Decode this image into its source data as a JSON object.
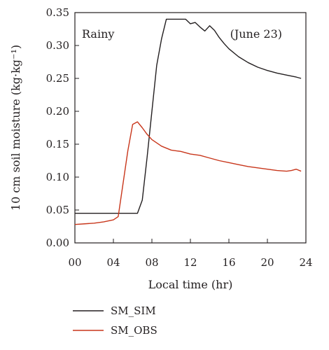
{
  "chart_data": {
    "type": "line",
    "xlabel": "Local time (hr)",
    "ylabel": "10 cm soil moisture (kg·kg⁻¹)",
    "xlim": [
      0,
      24
    ],
    "ylim": [
      0,
      0.35
    ],
    "x_ticks": [
      0,
      4,
      8,
      12,
      16,
      20,
      24
    ],
    "x_tick_labels": [
      "00",
      "04",
      "08",
      "12",
      "16",
      "20",
      "24"
    ],
    "y_ticks": [
      0,
      0.05,
      0.1,
      0.15,
      0.2,
      0.25,
      0.3,
      0.35
    ],
    "y_tick_labels": [
      "0.00",
      "0.05",
      "0.10",
      "0.15",
      "0.20",
      "0.25",
      "0.30",
      "0.35"
    ],
    "grid": false,
    "legend_position": "bottom",
    "annotations": [
      {
        "text": "Rainy",
        "position": "top-left"
      },
      {
        "text": "(June 23)",
        "position": "top-right"
      }
    ],
    "series": [
      {
        "name": "SM_SIM",
        "color": "#231f20",
        "x": [
          0,
          6.5,
          7.0,
          7.5,
          8.0,
          8.5,
          9.0,
          9.5,
          10,
          11,
          11.5,
          12,
          12.5,
          13,
          13.5,
          14,
          14.5,
          15,
          15.5,
          16,
          17,
          18,
          19,
          20,
          21,
          22,
          23,
          23.5
        ],
        "y": [
          0.045,
          0.045,
          0.065,
          0.13,
          0.2,
          0.27,
          0.31,
          0.34,
          0.34,
          0.34,
          0.34,
          0.333,
          0.335,
          0.328,
          0.322,
          0.33,
          0.323,
          0.312,
          0.303,
          0.295,
          0.283,
          0.274,
          0.267,
          0.262,
          0.258,
          0.255,
          0.252,
          0.25
        ]
      },
      {
        "name": "SM_OBS",
        "color": "#c8361b",
        "x": [
          0,
          1,
          2,
          3,
          4,
          4.5,
          5.0,
          5.5,
          6.0,
          6.5,
          7.0,
          7.5,
          8.0,
          9,
          10,
          11,
          12,
          13,
          14,
          15,
          16,
          17,
          18,
          19,
          20,
          21,
          22,
          22.5,
          23,
          23.5
        ],
        "y": [
          0.028,
          0.029,
          0.03,
          0.032,
          0.035,
          0.04,
          0.09,
          0.14,
          0.18,
          0.184,
          0.175,
          0.165,
          0.157,
          0.147,
          0.141,
          0.139,
          0.135,
          0.133,
          0.129,
          0.125,
          0.122,
          0.119,
          0.116,
          0.114,
          0.112,
          0.11,
          0.109,
          0.11,
          0.112,
          0.109
        ]
      }
    ]
  }
}
